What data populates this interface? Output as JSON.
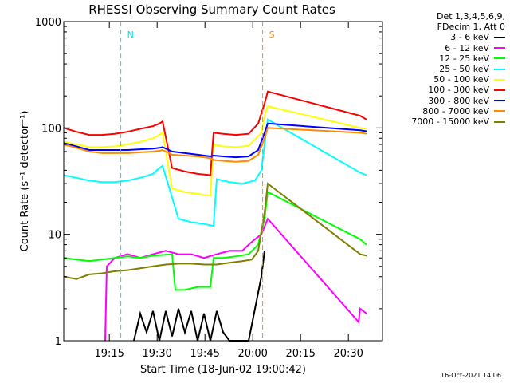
{
  "chart_data": {
    "type": "line",
    "title": "RHESSI Observing Summary Count Rates",
    "xlabel": "Start Time (18-Jun-02 19:00:42)",
    "ylabel": "Count Rate (s⁻¹ detector⁻¹)",
    "yscale": "log",
    "ylim": [
      1,
      1000
    ],
    "xlim_minutes": [
      0,
      100
    ],
    "xticks": [
      {
        "label": "19:15",
        "t": 14.3
      },
      {
        "label": "19:30",
        "t": 29.3
      },
      {
        "label": "19:45",
        "t": 44.3
      },
      {
        "label": "20:00",
        "t": 59.3
      },
      {
        "label": "20:15",
        "t": 74.3
      },
      {
        "label": "20:30",
        "t": 89.3
      }
    ],
    "yticks": [
      {
        "label": "1",
        "v": 1
      },
      {
        "label": "10",
        "v": 10
      },
      {
        "label": "100",
        "v": 100
      },
      {
        "label": "1000",
        "v": 1000
      }
    ],
    "legend_header": [
      "Det 1,3,4,5,6,9,",
      "FDecim 1, Att 0"
    ],
    "legend_position": "right",
    "series": [
      {
        "name": "3 - 6 keV",
        "color": "#000000",
        "points": [
          [
            22,
            1
          ],
          [
            24,
            1.8
          ],
          [
            26,
            1.2
          ],
          [
            28,
            1.9
          ],
          [
            30,
            1
          ],
          [
            32,
            1.9
          ],
          [
            34,
            1.1
          ],
          [
            36,
            2
          ],
          [
            38,
            1.2
          ],
          [
            40,
            1.9
          ],
          [
            42,
            1
          ],
          [
            44,
            1.8
          ],
          [
            46,
            1
          ],
          [
            48,
            1.9
          ],
          [
            50,
            1.2
          ],
          [
            52,
            1
          ],
          [
            54,
            1
          ],
          [
            56,
            1
          ],
          [
            58,
            1
          ],
          [
            60,
            2
          ],
          [
            62,
            4
          ],
          [
            63,
            7
          ]
        ]
      },
      {
        "name": "6 - 12 keV",
        "color": "#ff00ff",
        "points": [
          [
            13,
            1
          ],
          [
            13.5,
            5
          ],
          [
            16,
            6
          ],
          [
            20,
            6.5
          ],
          [
            24,
            6
          ],
          [
            28,
            6.5
          ],
          [
            32,
            7
          ],
          [
            36,
            6.5
          ],
          [
            40,
            6.5
          ],
          [
            44,
            6
          ],
          [
            48,
            6.5
          ],
          [
            52,
            7
          ],
          [
            56,
            7
          ],
          [
            58,
            8
          ],
          [
            60,
            9
          ],
          [
            62,
            10
          ],
          [
            64,
            14
          ],
          [
            92.5,
            1.5
          ],
          [
            93,
            2
          ],
          [
            95,
            1.8
          ]
        ]
      },
      {
        "name": "12 - 25 keV",
        "color": "#00ff00",
        "points": [
          [
            0,
            6
          ],
          [
            4,
            5.8
          ],
          [
            8,
            5.6
          ],
          [
            12,
            5.8
          ],
          [
            16,
            6
          ],
          [
            20,
            6.2
          ],
          [
            24,
            6
          ],
          [
            28,
            6.3
          ],
          [
            34,
            6.5
          ],
          [
            35,
            3
          ],
          [
            38,
            3
          ],
          [
            42,
            3.2
          ],
          [
            46,
            3.2
          ],
          [
            47,
            6
          ],
          [
            50,
            6
          ],
          [
            54,
            6.2
          ],
          [
            58,
            6.5
          ],
          [
            61,
            8
          ],
          [
            63,
            14
          ],
          [
            64,
            25
          ],
          [
            93,
            9
          ],
          [
            95,
            8
          ]
        ]
      },
      {
        "name": "25 - 50 keV",
        "color": "#00ffff",
        "points": [
          [
            0,
            36
          ],
          [
            4,
            34
          ],
          [
            8,
            32
          ],
          [
            12,
            31
          ],
          [
            16,
            31
          ],
          [
            20,
            32
          ],
          [
            24,
            34
          ],
          [
            28,
            37
          ],
          [
            30,
            42
          ],
          [
            31,
            44
          ],
          [
            36,
            14
          ],
          [
            40,
            13
          ],
          [
            44,
            12.5
          ],
          [
            47,
            12
          ],
          [
            48,
            33
          ],
          [
            52,
            31
          ],
          [
            56,
            30
          ],
          [
            60,
            32
          ],
          [
            62,
            40
          ],
          [
            63,
            70
          ],
          [
            64,
            120
          ],
          [
            93,
            38
          ],
          [
            95,
            36
          ]
        ]
      },
      {
        "name": "50 - 100 keV",
        "color": "#ffff00",
        "points": [
          [
            0,
            74
          ],
          [
            4,
            70
          ],
          [
            8,
            66
          ],
          [
            12,
            66
          ],
          [
            16,
            67
          ],
          [
            20,
            70
          ],
          [
            24,
            74
          ],
          [
            28,
            80
          ],
          [
            30,
            86
          ],
          [
            31,
            90
          ],
          [
            34,
            27
          ],
          [
            38,
            25
          ],
          [
            42,
            24
          ],
          [
            46,
            23
          ],
          [
            47,
            70
          ],
          [
            50,
            67
          ],
          [
            54,
            66
          ],
          [
            58,
            68
          ],
          [
            62,
            90
          ],
          [
            63,
            130
          ],
          [
            64,
            160
          ],
          [
            93,
            100
          ],
          [
            95,
            98
          ]
        ]
      },
      {
        "name": "100 - 300 keV",
        "color": "#ff0000",
        "points": [
          [
            0,
            100
          ],
          [
            4,
            92
          ],
          [
            8,
            86
          ],
          [
            12,
            86
          ],
          [
            16,
            88
          ],
          [
            20,
            92
          ],
          [
            24,
            98
          ],
          [
            28,
            104
          ],
          [
            30,
            110
          ],
          [
            31,
            115
          ],
          [
            34,
            42
          ],
          [
            38,
            39
          ],
          [
            42,
            37
          ],
          [
            46,
            36
          ],
          [
            47,
            90
          ],
          [
            50,
            88
          ],
          [
            54,
            86
          ],
          [
            58,
            88
          ],
          [
            61,
            110
          ],
          [
            63,
            170
          ],
          [
            64,
            220
          ],
          [
            93,
            130
          ],
          [
            95,
            120
          ]
        ]
      },
      {
        "name": "300 - 800 keV",
        "color": "#0000ff",
        "points": [
          [
            0,
            72
          ],
          [
            4,
            67
          ],
          [
            8,
            62
          ],
          [
            12,
            62
          ],
          [
            16,
            62
          ],
          [
            20,
            62
          ],
          [
            24,
            63
          ],
          [
            28,
            64
          ],
          [
            30,
            65
          ],
          [
            31,
            66
          ],
          [
            34,
            60
          ],
          [
            38,
            58
          ],
          [
            42,
            56
          ],
          [
            46,
            54
          ],
          [
            47,
            55
          ],
          [
            50,
            54
          ],
          [
            54,
            53
          ],
          [
            58,
            54
          ],
          [
            61,
            62
          ],
          [
            63,
            90
          ],
          [
            64,
            110
          ],
          [
            93,
            95
          ],
          [
            95,
            93
          ]
        ]
      },
      {
        "name": "800 - 7000 keV",
        "color": "#ff8c00",
        "points": [
          [
            0,
            70
          ],
          [
            4,
            65
          ],
          [
            8,
            60
          ],
          [
            12,
            58
          ],
          [
            16,
            58
          ],
          [
            20,
            58
          ],
          [
            24,
            59
          ],
          [
            28,
            60
          ],
          [
            30,
            61
          ],
          [
            31,
            62
          ],
          [
            34,
            56
          ],
          [
            38,
            55
          ],
          [
            42,
            54
          ],
          [
            46,
            52
          ],
          [
            47,
            50
          ],
          [
            50,
            49
          ],
          [
            54,
            48
          ],
          [
            58,
            49
          ],
          [
            61,
            56
          ],
          [
            63,
            80
          ],
          [
            64,
            100
          ],
          [
            93,
            90
          ],
          [
            95,
            88
          ]
        ]
      },
      {
        "name": "7000 - 15000 keV",
        "color": "#808000",
        "points": [
          [
            0,
            4
          ],
          [
            4,
            3.8
          ],
          [
            8,
            4.2
          ],
          [
            12,
            4.3
          ],
          [
            16,
            4.5
          ],
          [
            20,
            4.6
          ],
          [
            24,
            4.8
          ],
          [
            28,
            5
          ],
          [
            32,
            5.2
          ],
          [
            36,
            5.3
          ],
          [
            40,
            5.3
          ],
          [
            44,
            5.2
          ],
          [
            48,
            5.2
          ],
          [
            52,
            5.4
          ],
          [
            56,
            5.6
          ],
          [
            59,
            5.8
          ],
          [
            61,
            7
          ],
          [
            63,
            16
          ],
          [
            64,
            30
          ],
          [
            93,
            6.5
          ],
          [
            95,
            6.3
          ]
        ]
      }
    ],
    "annotations": [
      {
        "label": "N",
        "color": "#00e5ee",
        "t": 17.9
      },
      {
        "label": "S",
        "color": "#ff8c00",
        "t": 62.4
      }
    ],
    "timestamp": "16-Oct-2021 14:06"
  }
}
